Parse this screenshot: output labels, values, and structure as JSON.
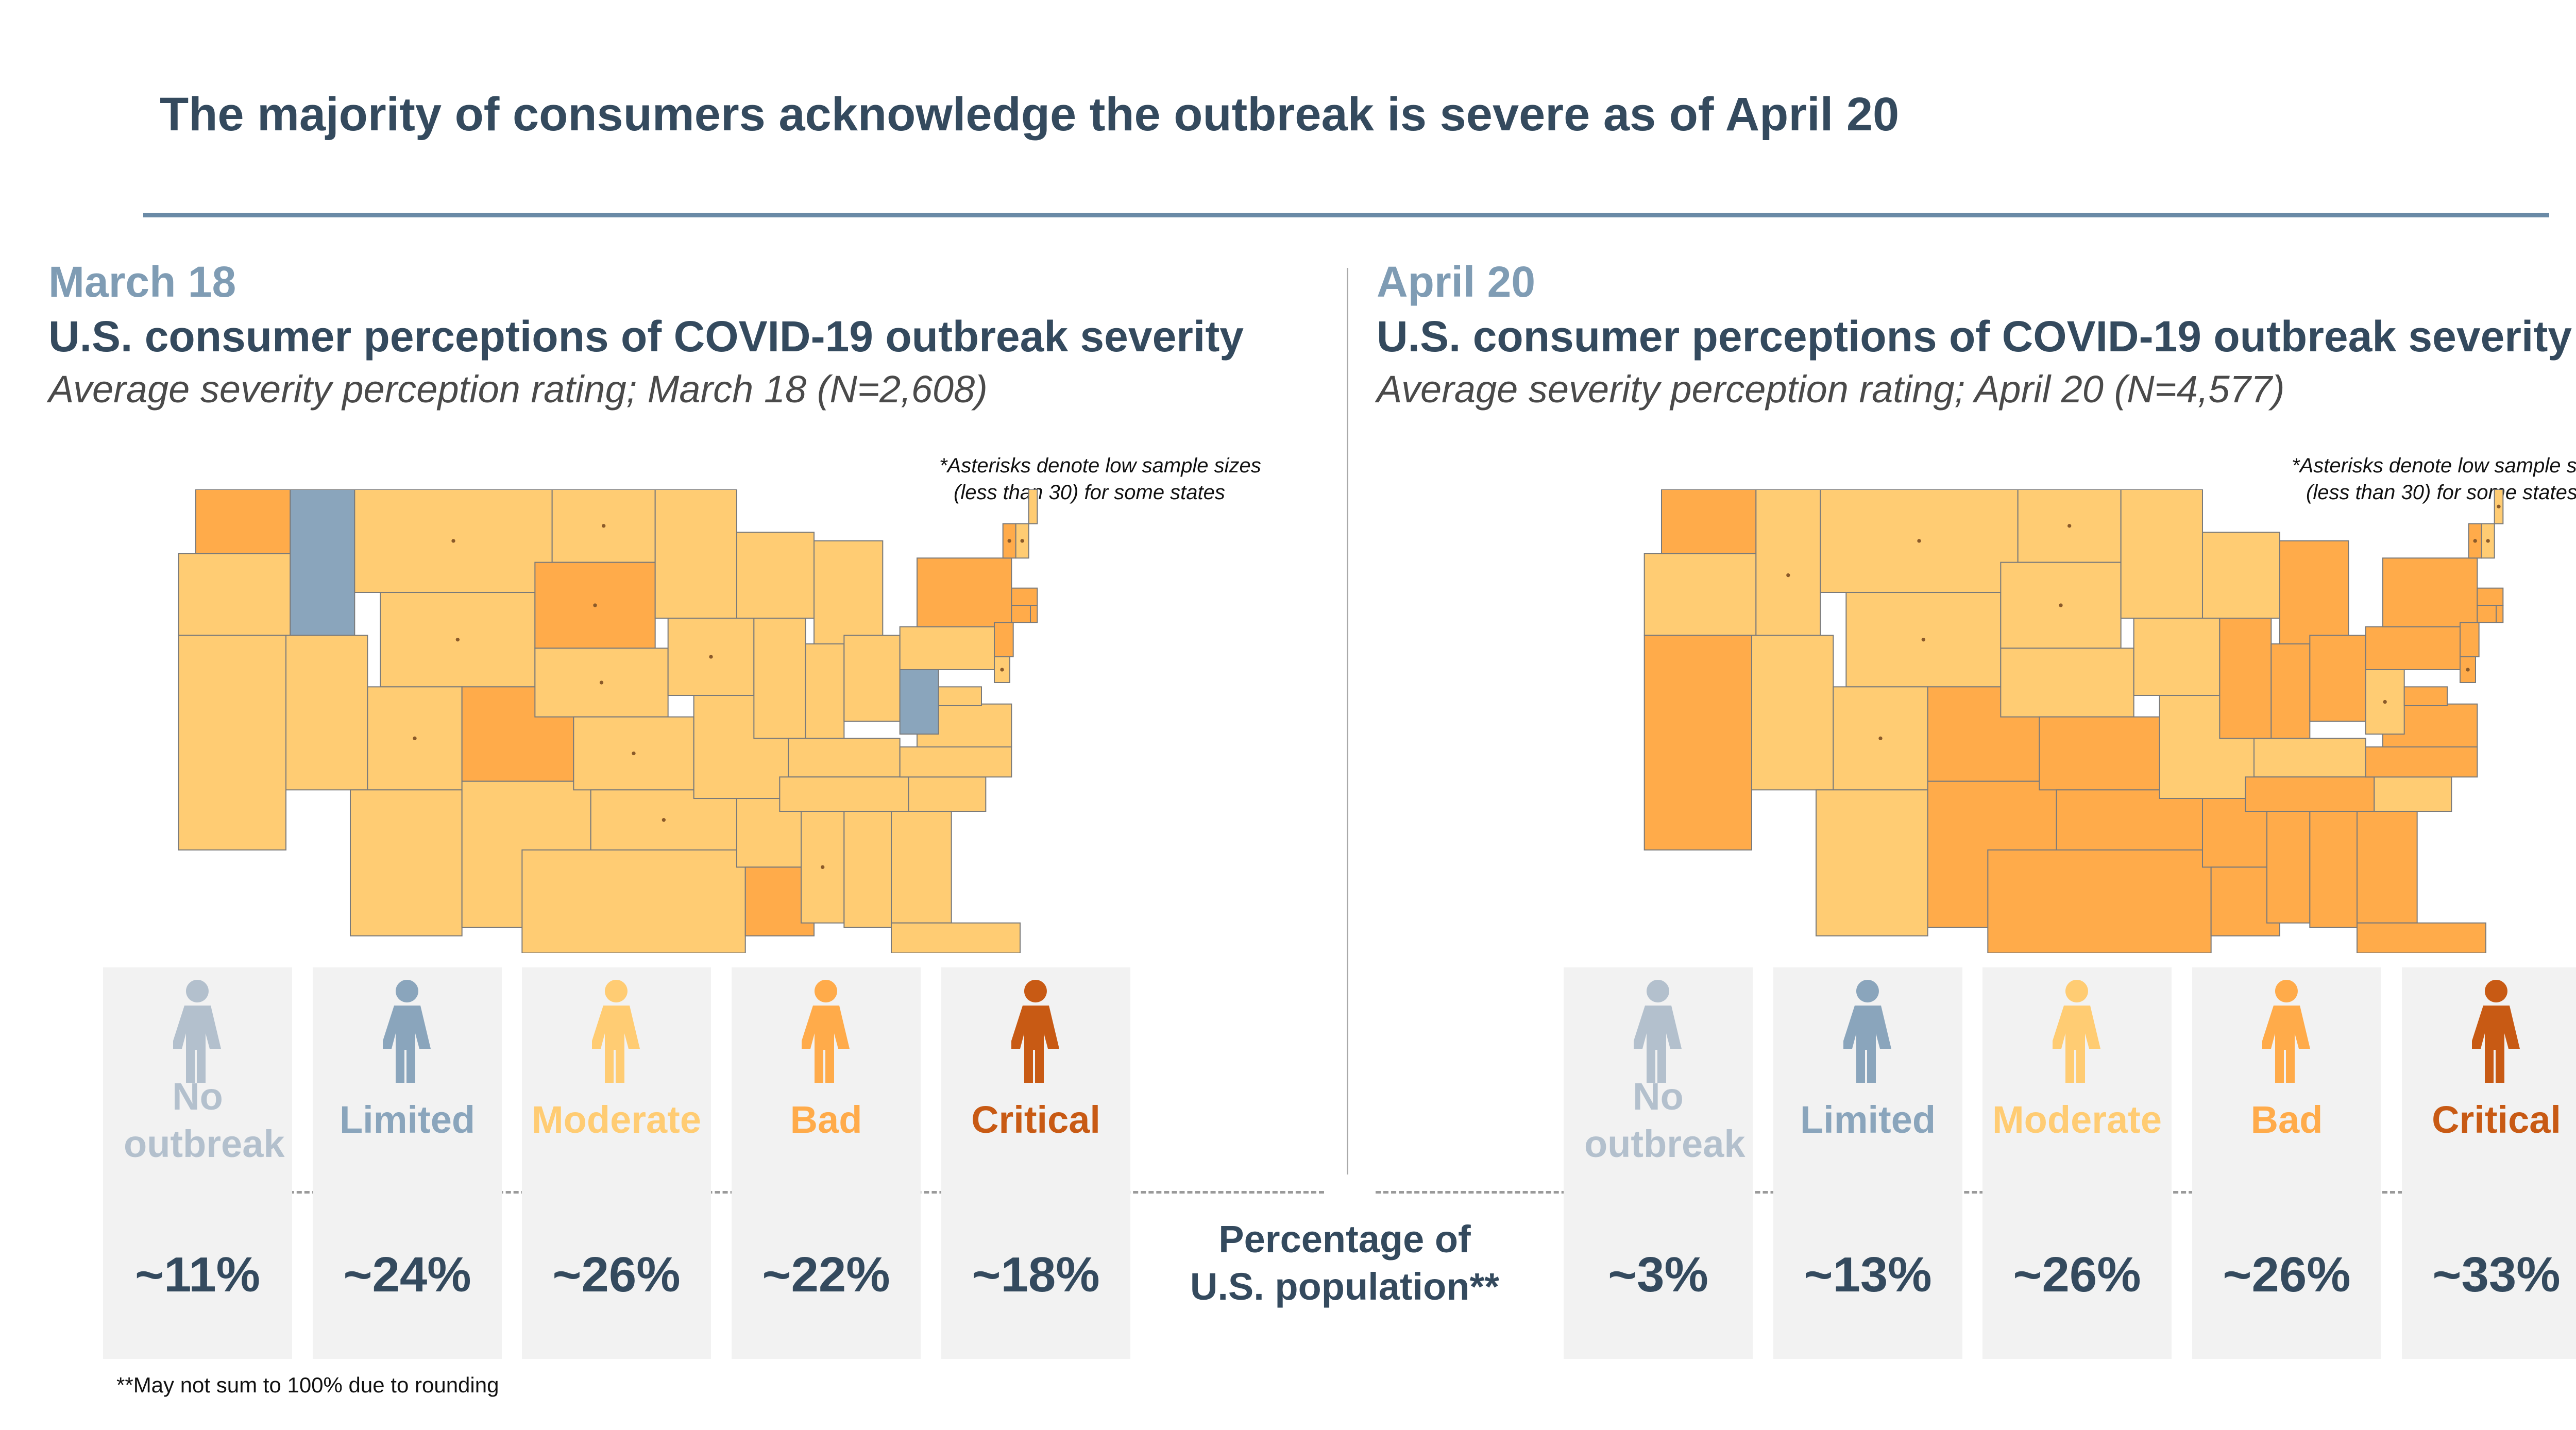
{
  "title": "The majority of consumers acknowledge the outbreak is severe as of April 20",
  "population_label": "Percentage of U.S. population**",
  "footnote": "**May not sum to 100% due to rounding",
  "colors": {
    "no_outbreak": "#b3c0cd",
    "limited": "#8aa5bc",
    "moderate": "#ffcc73",
    "bad": "#ffab4a",
    "critical": "#c85a14",
    "title": "#344a5e"
  },
  "chart_data": [
    {
      "type": "map",
      "date": "March 18",
      "subtitle": "U.S. consumer perceptions of COVID-19 outbreak severity",
      "description": "Average severity perception rating; March 18 (N=2,608)",
      "asterisk_note": [
        "*Asterisks denote low sample sizes",
        "(less than 30) for some states"
      ],
      "categories": [
        "No outbreak",
        "Limited",
        "Moderate",
        "Bad",
        "Critical"
      ],
      "values": [
        "~11%",
        "~24%",
        "~26%",
        "~22%",
        "~18%"
      ]
    },
    {
      "type": "map",
      "date": "April 20",
      "subtitle": "U.S. consumer perceptions of COVID-19 outbreak severity",
      "description": "Average severity perception rating; April 20 (N=4,577)",
      "asterisk_note": [
        "*Asterisks denote low sample sizes",
        "(less than 30) for some states"
      ],
      "categories": [
        "No outbreak",
        "Limited",
        "Moderate",
        "Bad",
        "Critical"
      ],
      "values": [
        "~3%",
        "~13%",
        "~26%",
        "~26%",
        "~33%"
      ]
    }
  ]
}
